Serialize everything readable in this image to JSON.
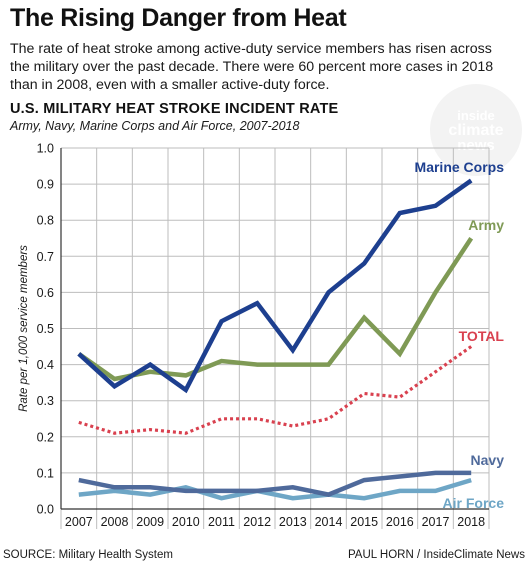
{
  "header": {
    "headline": "The Rising Danger from Heat",
    "dek": "The rate of heat stroke among active-duty service members has risen across the military over the past decade. There were 60 percent more cases in 2018 than in 2008, even with a smaller active-duty force."
  },
  "watermark": {
    "line1": "inside",
    "line2": "climate",
    "line3": "news"
  },
  "footer": {
    "source": "SOURCE: Military Health System",
    "credit": "PAUL HORN / InsideClimate News"
  },
  "chart_data": {
    "type": "line",
    "title": "U.S. MILITARY HEAT STROKE INCIDENT RATE",
    "subtitle": "Army, Navy, Marine Corps and Air Force, 2007-2018",
    "xlabel": "",
    "ylabel": "Rate per 1,000 service members",
    "ylim": [
      0,
      1.0
    ],
    "yticks": [
      "0.0",
      "0.1",
      "0.2",
      "0.3",
      "0.4",
      "0.5",
      "0.6",
      "0.7",
      "0.8",
      "0.9",
      "1.0"
    ],
    "grid": true,
    "categories": [
      "2007",
      "2008",
      "2009",
      "2010",
      "2011",
      "2012",
      "2013",
      "2014",
      "2015",
      "2016",
      "2017",
      "2018"
    ],
    "series": [
      {
        "name": "Marine Corps",
        "color": "#1d3f8f",
        "style": "solid",
        "values": [
          0.43,
          0.34,
          0.4,
          0.33,
          0.52,
          0.57,
          0.44,
          0.6,
          0.68,
          0.82,
          0.84,
          0.91
        ]
      },
      {
        "name": "Army",
        "color": "#7f9a55",
        "style": "solid",
        "values": [
          0.43,
          0.36,
          0.38,
          0.37,
          0.41,
          0.4,
          0.4,
          0.4,
          0.53,
          0.43,
          0.6,
          0.75
        ]
      },
      {
        "name": "TOTAL",
        "color": "#d9414f",
        "style": "dotted",
        "values": [
          0.24,
          0.21,
          0.22,
          0.21,
          0.25,
          0.25,
          0.23,
          0.25,
          0.32,
          0.31,
          0.38,
          0.45
        ]
      },
      {
        "name": "Navy",
        "color": "#4f6a9b",
        "style": "solid",
        "values": [
          0.08,
          0.06,
          0.06,
          0.05,
          0.05,
          0.05,
          0.06,
          0.04,
          0.08,
          0.09,
          0.1,
          0.1
        ]
      },
      {
        "name": "Air Force",
        "color": "#6ea6c6",
        "style": "solid",
        "values": [
          0.04,
          0.05,
          0.04,
          0.06,
          0.03,
          0.05,
          0.03,
          0.04,
          0.03,
          0.05,
          0.05,
          0.08
        ]
      }
    ]
  }
}
